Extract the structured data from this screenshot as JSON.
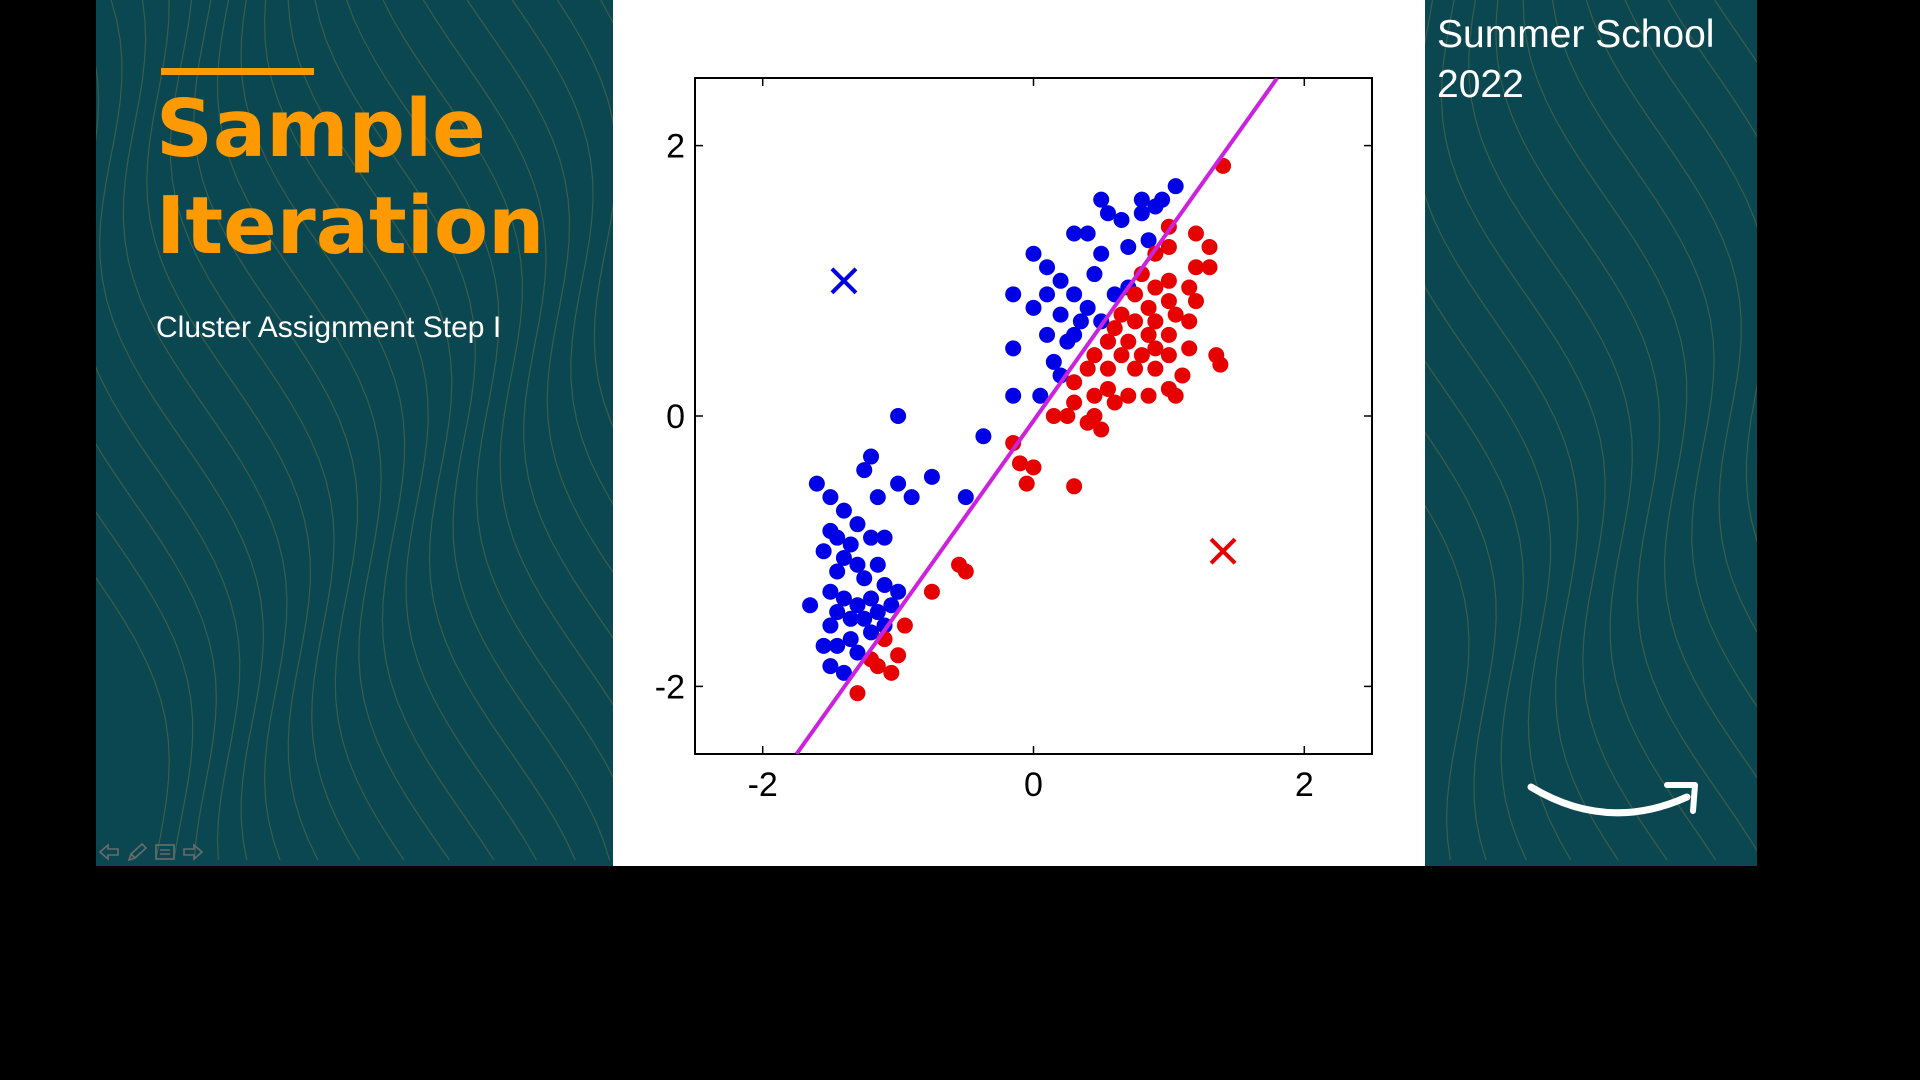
{
  "slide": {
    "title_line1": "Sample",
    "title_line2": "Iteration",
    "subtitle": "Cluster Assignment Step I",
    "event_line1": "Summer School",
    "event_line2": "2022"
  },
  "colors": {
    "panel": "#0b4750",
    "accent": "#ff9900",
    "cluster_a": "#0000e6",
    "cluster_b": "#e60000",
    "boundary": "#cc22dd"
  },
  "icons": [
    "previous-slide-icon",
    "pen-icon",
    "menu-icon",
    "next-slide-icon",
    "brand-smile-logo-icon"
  ],
  "chart_data": {
    "type": "scatter",
    "title": "",
    "xlabel": "",
    "ylabel": "",
    "xlim": [
      -2.5,
      2.5
    ],
    "ylim": [
      -2.5,
      2.5
    ],
    "xticks": [
      -2,
      0,
      2
    ],
    "yticks": [
      -2,
      0,
      2
    ],
    "grid": false,
    "legend": "none",
    "series": [
      {
        "color": "#0000e6",
        "marker": "circle",
        "points": [
          [
            -1.0,
            0.0
          ],
          [
            -1.2,
            -0.3
          ],
          [
            -1.6,
            -0.5
          ],
          [
            -1.5,
            -0.6
          ],
          [
            -1.4,
            -0.7
          ],
          [
            -1.15,
            -0.6
          ],
          [
            -1.0,
            -0.5
          ],
          [
            -0.9,
            -0.6
          ],
          [
            -1.25,
            -0.4
          ],
          [
            -0.75,
            -0.45
          ],
          [
            -1.3,
            -0.8
          ],
          [
            -1.5,
            -0.85
          ],
          [
            -1.45,
            -0.9
          ],
          [
            -1.35,
            -0.95
          ],
          [
            -1.2,
            -0.9
          ],
          [
            -1.1,
            -0.9
          ],
          [
            -1.55,
            -1.0
          ],
          [
            -1.4,
            -1.05
          ],
          [
            -1.3,
            -1.1
          ],
          [
            -1.15,
            -1.1
          ],
          [
            -1.45,
            -1.15
          ],
          [
            -1.25,
            -1.2
          ],
          [
            -1.1,
            -1.25
          ],
          [
            -1.5,
            -1.3
          ],
          [
            -1.4,
            -1.35
          ],
          [
            -1.3,
            -1.4
          ],
          [
            -1.2,
            -1.35
          ],
          [
            -1.0,
            -1.3
          ],
          [
            -1.65,
            -1.4
          ],
          [
            -1.45,
            -1.45
          ],
          [
            -1.35,
            -1.5
          ],
          [
            -1.25,
            -1.5
          ],
          [
            -1.15,
            -1.45
          ],
          [
            -1.5,
            -1.55
          ],
          [
            -1.55,
            -1.7
          ],
          [
            -1.45,
            -1.7
          ],
          [
            -1.35,
            -1.65
          ],
          [
            -1.3,
            -1.75
          ],
          [
            -1.5,
            -1.85
          ],
          [
            -1.4,
            -1.9
          ],
          [
            -1.2,
            -1.6
          ],
          [
            -1.1,
            -1.55
          ],
          [
            -1.05,
            -1.4
          ],
          [
            -0.5,
            -0.6
          ],
          [
            -0.37,
            -0.15
          ],
          [
            -0.15,
            0.15
          ],
          [
            -0.15,
            0.9
          ],
          [
            0.0,
            0.8
          ],
          [
            -0.15,
            0.5
          ],
          [
            0.05,
            0.15
          ],
          [
            0.0,
            1.2
          ],
          [
            0.1,
            1.1
          ],
          [
            0.2,
            1.0
          ],
          [
            0.3,
            0.9
          ],
          [
            0.1,
            0.9
          ],
          [
            0.2,
            0.75
          ],
          [
            0.35,
            0.7
          ],
          [
            0.1,
            0.6
          ],
          [
            0.25,
            0.55
          ],
          [
            0.4,
            0.8
          ],
          [
            0.45,
            1.05
          ],
          [
            0.5,
            1.2
          ],
          [
            0.4,
            1.35
          ],
          [
            0.3,
            1.35
          ],
          [
            0.55,
            1.5
          ],
          [
            0.5,
            1.6
          ],
          [
            0.65,
            1.45
          ],
          [
            0.7,
            1.25
          ],
          [
            0.8,
            1.5
          ],
          [
            0.9,
            1.55
          ],
          [
            0.95,
            1.6
          ],
          [
            1.05,
            1.7
          ],
          [
            0.8,
            1.6
          ],
          [
            0.6,
            0.9
          ],
          [
            0.5,
            0.7
          ],
          [
            0.3,
            0.6
          ],
          [
            0.15,
            0.4
          ],
          [
            0.55,
            0.55
          ],
          [
            0.7,
            0.95
          ],
          [
            0.85,
            1.3
          ],
          [
            0.2,
            0.3
          ]
        ]
      },
      {
        "color": "#e60000",
        "marker": "circle",
        "points": [
          [
            1.4,
            1.85
          ],
          [
            1.0,
            1.4
          ],
          [
            1.2,
            1.35
          ],
          [
            1.3,
            1.25
          ],
          [
            1.0,
            1.25
          ],
          [
            0.9,
            1.2
          ],
          [
            1.2,
            1.1
          ],
          [
            1.3,
            1.1
          ],
          [
            0.8,
            1.05
          ],
          [
            1.0,
            1.0
          ],
          [
            1.15,
            0.95
          ],
          [
            0.9,
            0.95
          ],
          [
            0.75,
            0.9
          ],
          [
            1.0,
            0.85
          ],
          [
            1.2,
            0.85
          ],
          [
            0.85,
            0.8
          ],
          [
            0.65,
            0.75
          ],
          [
            1.05,
            0.75
          ],
          [
            0.9,
            0.7
          ],
          [
            0.75,
            0.7
          ],
          [
            1.15,
            0.7
          ],
          [
            0.6,
            0.65
          ],
          [
            0.85,
            0.6
          ],
          [
            1.0,
            0.6
          ],
          [
            0.55,
            0.55
          ],
          [
            0.7,
            0.55
          ],
          [
            0.9,
            0.5
          ],
          [
            1.15,
            0.5
          ],
          [
            0.45,
            0.45
          ],
          [
            0.65,
            0.45
          ],
          [
            0.8,
            0.45
          ],
          [
            1.0,
            0.45
          ],
          [
            1.35,
            0.45
          ],
          [
            0.4,
            0.35
          ],
          [
            0.55,
            0.35
          ],
          [
            0.75,
            0.35
          ],
          [
            0.9,
            0.35
          ],
          [
            1.1,
            0.3
          ],
          [
            1.38,
            0.38
          ],
          [
            0.3,
            0.25
          ],
          [
            0.55,
            0.2
          ],
          [
            0.7,
            0.15
          ],
          [
            0.85,
            0.15
          ],
          [
            1.0,
            0.2
          ],
          [
            1.05,
            0.15
          ],
          [
            0.3,
            0.1
          ],
          [
            0.45,
            0.15
          ],
          [
            0.6,
            0.1
          ],
          [
            0.15,
            0.0
          ],
          [
            0.25,
            0.0
          ],
          [
            0.4,
            -0.05
          ],
          [
            0.5,
            -0.1
          ],
          [
            0.45,
            0.0
          ],
          [
            -0.15,
            -0.2
          ],
          [
            -0.1,
            -0.35
          ],
          [
            -0.0,
            -0.38
          ],
          [
            -0.05,
            -0.5
          ],
          [
            0.3,
            -0.52
          ],
          [
            -0.55,
            -1.1
          ],
          [
            -0.5,
            -1.15
          ],
          [
            -0.75,
            -1.3
          ],
          [
            -0.95,
            -1.55
          ],
          [
            -1.1,
            -1.65
          ],
          [
            -1.15,
            -1.85
          ],
          [
            -1.05,
            -1.9
          ],
          [
            -1.2,
            -1.8
          ],
          [
            -1.0,
            -1.77
          ],
          [
            -1.3,
            -2.05
          ]
        ]
      }
    ],
    "centroids": [
      {
        "x": -1.4,
        "y": 1.0,
        "color": "#0000e6",
        "marker": "x"
      },
      {
        "x": 1.4,
        "y": -1.0,
        "color": "#e60000",
        "marker": "x"
      }
    ],
    "boundary_line": {
      "color": "#cc22dd",
      "from": [
        -1.75,
        -2.5
      ],
      "to": [
        1.8,
        2.5
      ]
    }
  }
}
